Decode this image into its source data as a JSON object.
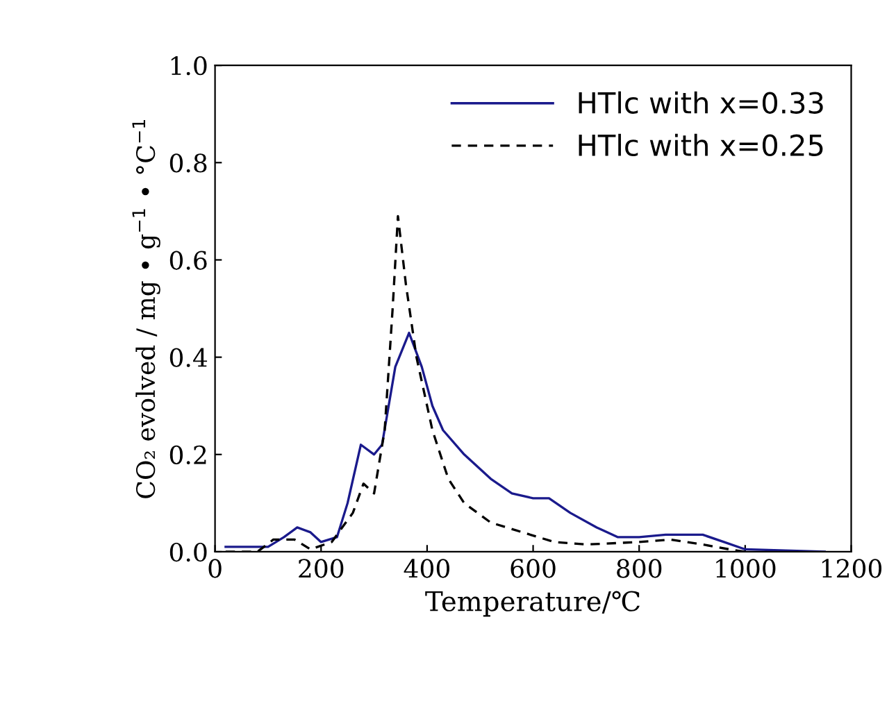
{
  "chart_data": {
    "type": "line",
    "xlabel": "Temperature/℃",
    "ylabel": "CO₂ evolved / mg • g$^{−1}$ • °C$^{−1}$",
    "xlim": [
      0,
      1200
    ],
    "xticks": [
      0,
      200,
      400,
      600,
      800,
      1000,
      1200
    ],
    "ylim": [
      0,
      1.0
    ],
    "yticks": [
      {
        "value": 0,
        "label": "0.0"
      },
      {
        "value": 0.2,
        "label": "0.2"
      },
      {
        "value": 0.4,
        "label": "0.4"
      },
      {
        "value": 0.6,
        "label": "0.6"
      },
      {
        "value": 0.8,
        "label": "0.8"
      },
      {
        "value": 1.0,
        "label": "1.0"
      }
    ],
    "grid": false,
    "legend": "top right",
    "series": [
      {
        "name": "HTlc with x=0.33",
        "color": "#1a1a8c",
        "line_style": "solid",
        "x": [
          20,
          100,
          130,
          155,
          180,
          200,
          230,
          250,
          275,
          300,
          315,
          340,
          366,
          390,
          410,
          430,
          470,
          520,
          560,
          600,
          630,
          670,
          720,
          760,
          800,
          850,
          920,
          960,
          1000,
          1150
        ],
        "values": [
          0.01,
          0.01,
          0.03,
          0.05,
          0.04,
          0.02,
          0.03,
          0.1,
          0.22,
          0.2,
          0.22,
          0.38,
          0.45,
          0.38,
          0.3,
          0.25,
          0.2,
          0.15,
          0.12,
          0.11,
          0.11,
          0.08,
          0.05,
          0.03,
          0.03,
          0.035,
          0.035,
          0.02,
          0.005,
          0.0
        ]
      },
      {
        "name": "HTlc with x=0.25",
        "color": "#000000",
        "line_style": "dashed",
        "x": [
          20,
          80,
          110,
          150,
          180,
          220,
          260,
          280,
          300,
          320,
          335,
          345,
          360,
          380,
          410,
          440,
          470,
          520,
          580,
          640,
          700,
          800,
          860,
          920,
          970,
          1000
        ],
        "values": [
          0.0,
          0.0,
          0.025,
          0.025,
          0.005,
          0.02,
          0.08,
          0.14,
          0.12,
          0.25,
          0.5,
          0.69,
          0.55,
          0.4,
          0.25,
          0.15,
          0.1,
          0.06,
          0.04,
          0.02,
          0.015,
          0.02,
          0.025,
          0.015,
          0.005,
          0.0
        ]
      }
    ]
  }
}
